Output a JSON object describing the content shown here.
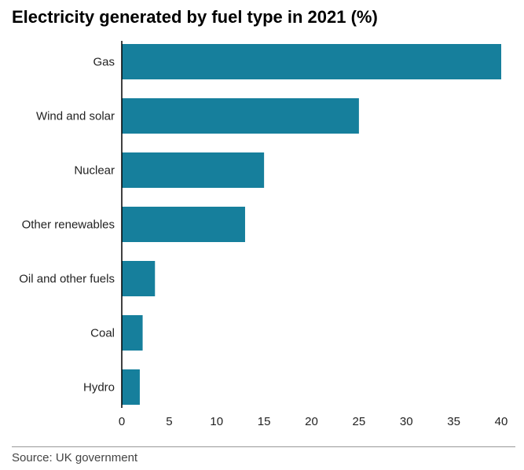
{
  "chart_data": {
    "type": "bar",
    "orientation": "horizontal",
    "title": "Electricity generated by fuel type in 2021 (%)",
    "categories": [
      "Gas",
      "Wind and solar",
      "Nuclear",
      "Other renewables",
      "Oil and other fuels",
      "Coal",
      "Hydro"
    ],
    "values": [
      40,
      25,
      15,
      13,
      3.5,
      2.2,
      1.9
    ],
    "xlim": [
      0,
      40
    ],
    "xticks": [
      0,
      5,
      10,
      15,
      20,
      25,
      30,
      35,
      40
    ],
    "grid": false,
    "bar_color": "#167f9c",
    "source": "Source: UK government"
  }
}
